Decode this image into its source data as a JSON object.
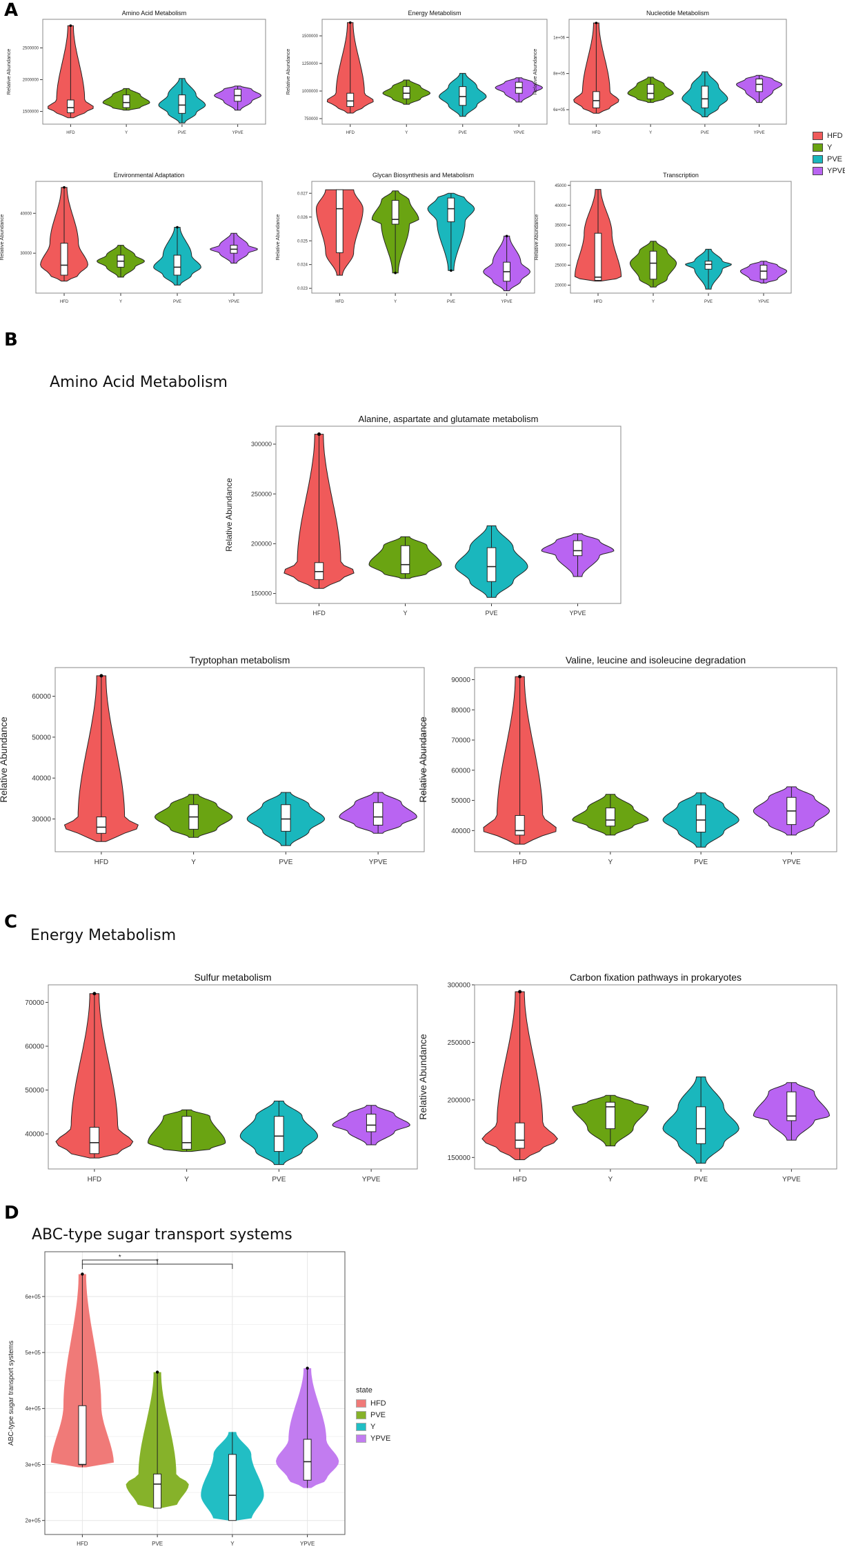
{
  "panels": {
    "A": "A",
    "B": "B",
    "C": "C",
    "D": "D"
  },
  "sections": {
    "B": "Amino Acid Metabolism",
    "C": "Energy Metabolism",
    "D": "ABC-type sugar transport systems"
  },
  "colors": {
    "HFD": "#f05a5a",
    "Y": "#6aa412",
    "PVE": "#1ab7bd",
    "YPVE": "#b964f2"
  },
  "legend_A": [
    "HFD",
    "Y",
    "PVE",
    "YPVE"
  ],
  "legend_D": {
    "title": "state",
    "items": [
      "HFD",
      "PVE",
      "Y",
      "YPVE"
    ]
  },
  "chart_data": [
    {
      "id": "a1",
      "type": "violin",
      "title": "Amino Acid Metabolism",
      "ylabel": "Relative Abundance",
      "categories": [
        "HFD",
        "Y",
        "PVE",
        "YPVE"
      ],
      "ylim": [
        1300000,
        2950000
      ],
      "yticks": [
        1500000,
        2000000,
        2500000
      ],
      "ytick_labels": [
        "1500000",
        "2000000",
        "2500000"
      ],
      "series": [
        {
          "name": "HFD",
          "min": 1400000,
          "q1": 1480000,
          "median": 1560000,
          "q3": 1680000,
          "max": 2850000,
          "outlier": 2850000
        },
        {
          "name": "Y",
          "min": 1520000,
          "q1": 1560000,
          "median": 1640000,
          "q3": 1760000,
          "max": 1860000
        },
        {
          "name": "PVE",
          "min": 1320000,
          "q1": 1470000,
          "median": 1600000,
          "q3": 1760000,
          "max": 2020000
        },
        {
          "name": "YPVE",
          "min": 1520000,
          "q1": 1660000,
          "median": 1750000,
          "q3": 1850000,
          "max": 1900000
        }
      ]
    },
    {
      "id": "a2",
      "type": "violin",
      "title": "Energy Metabolism",
      "ylabel": "Relative Abundance",
      "categories": [
        "HFD",
        "Y",
        "PVE",
        "YPVE"
      ],
      "ylim": [
        700000,
        1650000
      ],
      "yticks": [
        750000,
        1000000,
        1250000,
        1500000
      ],
      "ytick_labels": [
        "750000",
        "1000000",
        "1250000",
        "1500000"
      ],
      "series": [
        {
          "name": "HFD",
          "min": 800000,
          "q1": 860000,
          "median": 910000,
          "q3": 980000,
          "max": 1620000,
          "outlier": 1620000
        },
        {
          "name": "Y",
          "min": 880000,
          "q1": 930000,
          "median": 980000,
          "q3": 1040000,
          "max": 1100000
        },
        {
          "name": "PVE",
          "min": 770000,
          "q1": 870000,
          "median": 950000,
          "q3": 1040000,
          "max": 1160000
        },
        {
          "name": "YPVE",
          "min": 900000,
          "q1": 980000,
          "median": 1030000,
          "q3": 1080000,
          "max": 1120000
        }
      ]
    },
    {
      "id": "a3",
      "type": "violin",
      "title": "Nucleotide Metabolism",
      "ylabel": "Relative Abundance",
      "categories": [
        "HFD",
        "Y",
        "PVE",
        "YPVE"
      ],
      "ylim": [
        520000,
        1100000
      ],
      "yticks": [
        600000,
        800000,
        1000000
      ],
      "ytick_labels": [
        "6e+05",
        "8e+05",
        "1e+06"
      ],
      "series": [
        {
          "name": "HFD",
          "min": 580000,
          "q1": 610000,
          "median": 650000,
          "q3": 700000,
          "max": 1080000,
          "outlier": 1080000
        },
        {
          "name": "Y",
          "min": 640000,
          "q1": 660000,
          "median": 690000,
          "q3": 740000,
          "max": 780000
        },
        {
          "name": "PVE",
          "min": 560000,
          "q1": 610000,
          "median": 660000,
          "q3": 730000,
          "max": 810000
        },
        {
          "name": "YPVE",
          "min": 640000,
          "q1": 700000,
          "median": 740000,
          "q3": 770000,
          "max": 790000
        }
      ]
    },
    {
      "id": "a4",
      "type": "violin",
      "title": "Environmental Adaptation",
      "ylabel": "Relative Abundance",
      "categories": [
        "HFD",
        "Y",
        "PVE",
        "YPVE"
      ],
      "ylim": [
        20000,
        48000
      ],
      "yticks": [
        30000,
        40000
      ],
      "ytick_labels": [
        "30000",
        "40000"
      ],
      "series": [
        {
          "name": "HFD",
          "min": 23000,
          "q1": 24500,
          "median": 27000,
          "q3": 32500,
          "max": 46500,
          "outlier": 46500
        },
        {
          "name": "Y",
          "min": 24000,
          "q1": 26500,
          "median": 28000,
          "q3": 29500,
          "max": 32000
        },
        {
          "name": "PVE",
          "min": 22000,
          "q1": 24500,
          "median": 26500,
          "q3": 29500,
          "max": 36500,
          "outlier": 36500
        },
        {
          "name": "YPVE",
          "min": 27500,
          "q1": 30000,
          "median": 31000,
          "q3": 32000,
          "max": 35000
        }
      ]
    },
    {
      "id": "a5",
      "type": "violin",
      "title": "Glycan Biosynthesis and Metabolism",
      "ylabel": "Relative Abundance",
      "categories": [
        "HFD",
        "Y",
        "PVE",
        "YPVE"
      ],
      "ylim": [
        0.0228,
        0.0275
      ],
      "yticks": [
        0.023,
        0.024,
        0.025,
        0.026,
        0.027
      ],
      "ytick_labels": [
        "0.023",
        "0.024",
        "0.025",
        "0.026",
        "0.027"
      ],
      "series": [
        {
          "name": "HFD",
          "min": 0.02355,
          "q1": 0.0245,
          "median": 0.02635,
          "q3": 0.02715,
          "max": 0.02715
        },
        {
          "name": "Y",
          "min": 0.02365,
          "q1": 0.0257,
          "median": 0.0259,
          "q3": 0.0267,
          "max": 0.0271,
          "outlier": 0.02365
        },
        {
          "name": "PVE",
          "min": 0.02375,
          "q1": 0.0258,
          "median": 0.02635,
          "q3": 0.0268,
          "max": 0.027,
          "outlier": 0.02375
        },
        {
          "name": "YPVE",
          "min": 0.0229,
          "q1": 0.0233,
          "median": 0.0237,
          "q3": 0.0241,
          "max": 0.0252,
          "outlier": 0.0252
        }
      ]
    },
    {
      "id": "a6",
      "type": "violin",
      "title": "Transcription",
      "ylabel": "Relative Abundance",
      "categories": [
        "HFD",
        "Y",
        "PVE",
        "YPVE"
      ],
      "ylim": [
        18000,
        46000
      ],
      "yticks": [
        20000,
        25000,
        30000,
        35000,
        40000,
        45000
      ],
      "ytick_labels": [
        "20000",
        "25000",
        "30000",
        "35000",
        "40000",
        "45000"
      ],
      "series": [
        {
          "name": "HFD",
          "min": 21000,
          "q1": 21200,
          "median": 22000,
          "q3": 33000,
          "max": 44000
        },
        {
          "name": "Y",
          "min": 19500,
          "q1": 21500,
          "median": 25500,
          "q3": 28500,
          "max": 31000
        },
        {
          "name": "PVE",
          "min": 19000,
          "q1": 24000,
          "median": 25200,
          "q3": 26000,
          "max": 29000
        },
        {
          "name": "YPVE",
          "min": 20500,
          "q1": 21500,
          "median": 23500,
          "q3": 25000,
          "max": 26000
        }
      ]
    },
    {
      "id": "b1",
      "type": "violin",
      "title": "Alanine, aspartate and glutamate metabolism",
      "ylabel": "Relative Abundance",
      "categories": [
        "HFD",
        "Y",
        "PVE",
        "YPVE"
      ],
      "ylim": [
        140000,
        318000
      ],
      "yticks": [
        150000,
        200000,
        250000,
        300000
      ],
      "ytick_labels": [
        "150000",
        "200000",
        "250000",
        "300000"
      ],
      "series": [
        {
          "name": "HFD",
          "min": 155000,
          "q1": 164000,
          "median": 172000,
          "q3": 181000,
          "max": 310000,
          "outlier": 310000
        },
        {
          "name": "Y",
          "min": 165000,
          "q1": 170000,
          "median": 179000,
          "q3": 198000,
          "max": 207000
        },
        {
          "name": "PVE",
          "min": 146000,
          "q1": 162000,
          "median": 177000,
          "q3": 196000,
          "max": 218000
        },
        {
          "name": "YPVE",
          "min": 167000,
          "q1": 188000,
          "median": 193000,
          "q3": 203000,
          "max": 210000
        }
      ]
    },
    {
      "id": "b2",
      "type": "violin",
      "title": "Tryptophan metabolism",
      "ylabel": "Relative Abundance",
      "categories": [
        "HFD",
        "Y",
        "PVE",
        "YPVE"
      ],
      "ylim": [
        22000,
        67000
      ],
      "yticks": [
        30000,
        40000,
        50000,
        60000
      ],
      "ytick_labels": [
        "30000",
        "40000",
        "50000",
        "60000"
      ],
      "series": [
        {
          "name": "HFD",
          "min": 24500,
          "q1": 26500,
          "median": 28000,
          "q3": 30500,
          "max": 65000,
          "outlier": 65000
        },
        {
          "name": "Y",
          "min": 25500,
          "q1": 27500,
          "median": 30500,
          "q3": 33500,
          "max": 36000
        },
        {
          "name": "PVE",
          "min": 23500,
          "q1": 27000,
          "median": 30000,
          "q3": 33500,
          "max": 36500
        },
        {
          "name": "YPVE",
          "min": 26500,
          "q1": 28500,
          "median": 30500,
          "q3": 34000,
          "max": 36500
        }
      ]
    },
    {
      "id": "b3",
      "type": "violin",
      "title": "Valine, leucine and isoleucine degradation",
      "ylabel": "Relative Abundance",
      "categories": [
        "HFD",
        "Y",
        "PVE",
        "YPVE"
      ],
      "ylim": [
        33000,
        94000
      ],
      "yticks": [
        40000,
        50000,
        60000,
        70000,
        80000,
        90000
      ],
      "ytick_labels": [
        "40000",
        "50000",
        "60000",
        "70000",
        "80000",
        "90000"
      ],
      "series": [
        {
          "name": "HFD",
          "min": 35500,
          "q1": 38500,
          "median": 40000,
          "q3": 45000,
          "max": 91000,
          "outlier": 91000
        },
        {
          "name": "Y",
          "min": 38500,
          "q1": 41500,
          "median": 43500,
          "q3": 47500,
          "max": 52000
        },
        {
          "name": "PVE",
          "min": 34500,
          "q1": 39500,
          "median": 43500,
          "q3": 48500,
          "max": 52500
        },
        {
          "name": "YPVE",
          "min": 38500,
          "q1": 42000,
          "median": 46500,
          "q3": 51000,
          "max": 54500
        }
      ]
    },
    {
      "id": "c1",
      "type": "violin",
      "title": "Sulfur metabolism",
      "ylabel": "Relative Abundance",
      "categories": [
        "HFD",
        "Y",
        "PVE",
        "YPVE"
      ],
      "ylim": [
        32000,
        74000
      ],
      "yticks": [
        40000,
        50000,
        60000,
        70000
      ],
      "ytick_labels": [
        "40000",
        "50000",
        "60000",
        "70000"
      ],
      "series": [
        {
          "name": "HFD",
          "min": 34500,
          "q1": 35500,
          "median": 38000,
          "q3": 41500,
          "max": 72000,
          "outlier": 72000
        },
        {
          "name": "Y",
          "min": 36000,
          "q1": 36500,
          "median": 38000,
          "q3": 44000,
          "max": 45500
        },
        {
          "name": "PVE",
          "min": 33000,
          "q1": 36000,
          "median": 39500,
          "q3": 44000,
          "max": 47500
        },
        {
          "name": "YPVE",
          "min": 37500,
          "q1": 40500,
          "median": 42000,
          "q3": 44500,
          "max": 46500
        }
      ]
    },
    {
      "id": "c2",
      "type": "violin",
      "title": "Carbon fixation pathways in prokaryotes",
      "ylabel": "Relative Abundance",
      "categories": [
        "HFD",
        "Y",
        "PVE",
        "YPVE"
      ],
      "ylim": [
        140000,
        300000
      ],
      "yticks": [
        150000,
        200000,
        250000,
        300000
      ],
      "ytick_labels": [
        "150000",
        "200000",
        "250000",
        "300000"
      ],
      "series": [
        {
          "name": "HFD",
          "min": 148000,
          "q1": 158000,
          "median": 165000,
          "q3": 180000,
          "max": 294000,
          "outlier": 294000
        },
        {
          "name": "Y",
          "min": 160000,
          "q1": 175000,
          "median": 194000,
          "q3": 198000,
          "max": 204000
        },
        {
          "name": "PVE",
          "min": 145000,
          "q1": 162000,
          "median": 175000,
          "q3": 194000,
          "max": 220000
        },
        {
          "name": "YPVE",
          "min": 165000,
          "q1": 182000,
          "median": 186000,
          "q3": 207000,
          "max": 215000
        }
      ]
    },
    {
      "id": "d1",
      "type": "violin",
      "title": "",
      "ylabel": "ABC-type sugar transport systems",
      "categories": [
        "HFD",
        "PVE",
        "Y",
        "YPVE"
      ],
      "ylim": [
        175000,
        680000
      ],
      "yticks": [
        200000,
        300000,
        400000,
        500000,
        600000
      ],
      "ytick_labels": [
        "2e+05",
        "3e+05",
        "4e+05",
        "5e+05",
        "6e+05"
      ],
      "series": [
        {
          "name": "HFD",
          "min": 295000,
          "q1": 300000,
          "median": 300000,
          "q3": 405000,
          "max": 640000,
          "outlier": 640000
        },
        {
          "name": "PVE",
          "min": 222000,
          "q1": 222000,
          "median": 265000,
          "q3": 283000,
          "max": 465000,
          "outlier": 465000
        },
        {
          "name": "Y",
          "min": 200000,
          "q1": 200000,
          "median": 245000,
          "q3": 318000,
          "max": 358000
        },
        {
          "name": "YPVE",
          "min": 258000,
          "q1": 272000,
          "median": 305000,
          "q3": 345000,
          "max": 472000,
          "outlier": 472000
        }
      ],
      "significance": [
        {
          "from": "HFD",
          "to": "PVE",
          "label": "*"
        },
        {
          "from": "HFD",
          "to": "Y",
          "label": "*"
        }
      ]
    }
  ]
}
